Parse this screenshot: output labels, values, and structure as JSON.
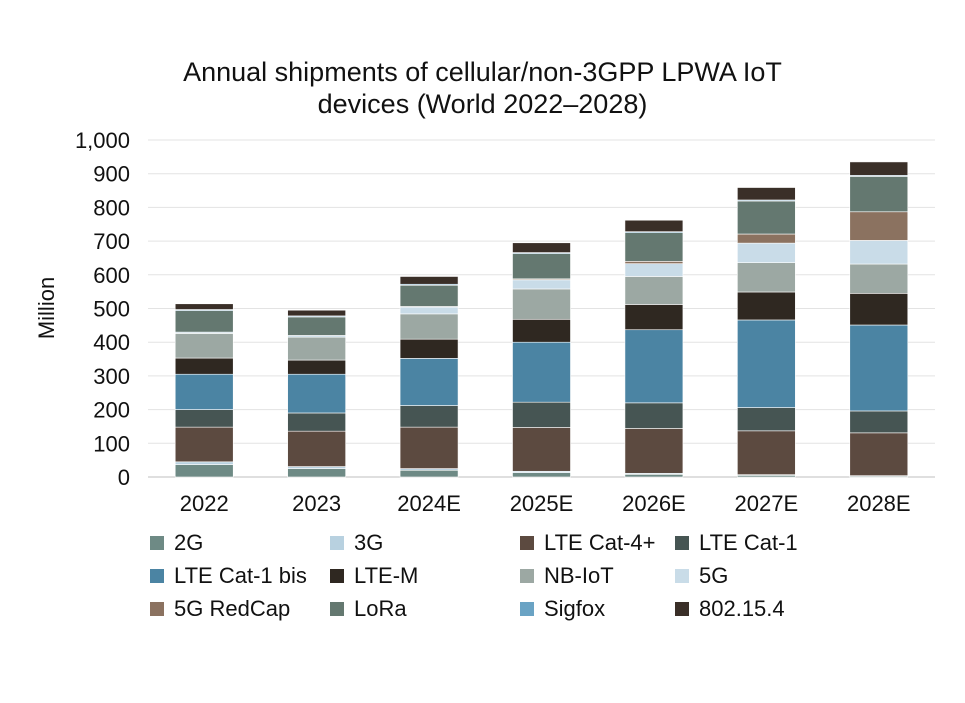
{
  "chart_data": {
    "type": "bar",
    "stacked": true,
    "title_lines": [
      "Annual shipments of cellular/non-3GPP LPWA IoT",
      "devices (World 2022–2028)"
    ],
    "ylabel": "Million",
    "xlabel": "",
    "ylim": [
      0,
      1000
    ],
    "yticks": [
      "0",
      "100",
      "200",
      "300",
      "400",
      "500",
      "600",
      "700",
      "800",
      "900",
      "1,000"
    ],
    "grid": true,
    "legend_position": "bottom",
    "categories": [
      "2022",
      "2023",
      "2024E",
      "2025E",
      "2026E",
      "2027E",
      "2028E"
    ],
    "series": [
      {
        "name": "2G",
        "color": "#6e8a85",
        "values": [
          37,
          25,
          20,
          13,
          8,
          5,
          3
        ]
      },
      {
        "name": "3G",
        "color": "#b8d1e0",
        "values": [
          8,
          6,
          5,
          4,
          3,
          2,
          1
        ]
      },
      {
        "name": "LTE Cat-4+",
        "color": "#5c4a40",
        "values": [
          103,
          105,
          123,
          130,
          133,
          130,
          127
        ]
      },
      {
        "name": "LTE Cat-1",
        "color": "#465553",
        "values": [
          52,
          54,
          64,
          75,
          76,
          69,
          65
        ]
      },
      {
        "name": "LTE Cat-1 bis",
        "color": "#4b84a3",
        "values": [
          105,
          115,
          140,
          178,
          217,
          260,
          255
        ]
      },
      {
        "name": "LTE-M",
        "color": "#2f2821",
        "values": [
          48,
          42,
          57,
          68,
          75,
          83,
          94
        ]
      },
      {
        "name": "NB-IoT",
        "color": "#9ca8a3",
        "values": [
          73,
          68,
          75,
          90,
          83,
          87,
          87
        ]
      },
      {
        "name": "5G",
        "color": "#c9dce8",
        "values": [
          4,
          5,
          20,
          27,
          38,
          58,
          70
        ]
      },
      {
        "name": "5G RedCap",
        "color": "#8b7260",
        "values": [
          0,
          0,
          2,
          3,
          7,
          27,
          85
        ]
      },
      {
        "name": "LoRa",
        "color": "#647870",
        "values": [
          64,
          55,
          63,
          75,
          85,
          98,
          105
        ]
      },
      {
        "name": "Sigfox",
        "color": "#6aa3c4",
        "values": [
          3,
          3,
          3,
          3,
          3,
          3,
          3
        ]
      },
      {
        "name": "802.15.4",
        "color": "#3a2f28",
        "values": [
          17,
          17,
          23,
          29,
          34,
          37,
          40
        ]
      }
    ]
  }
}
